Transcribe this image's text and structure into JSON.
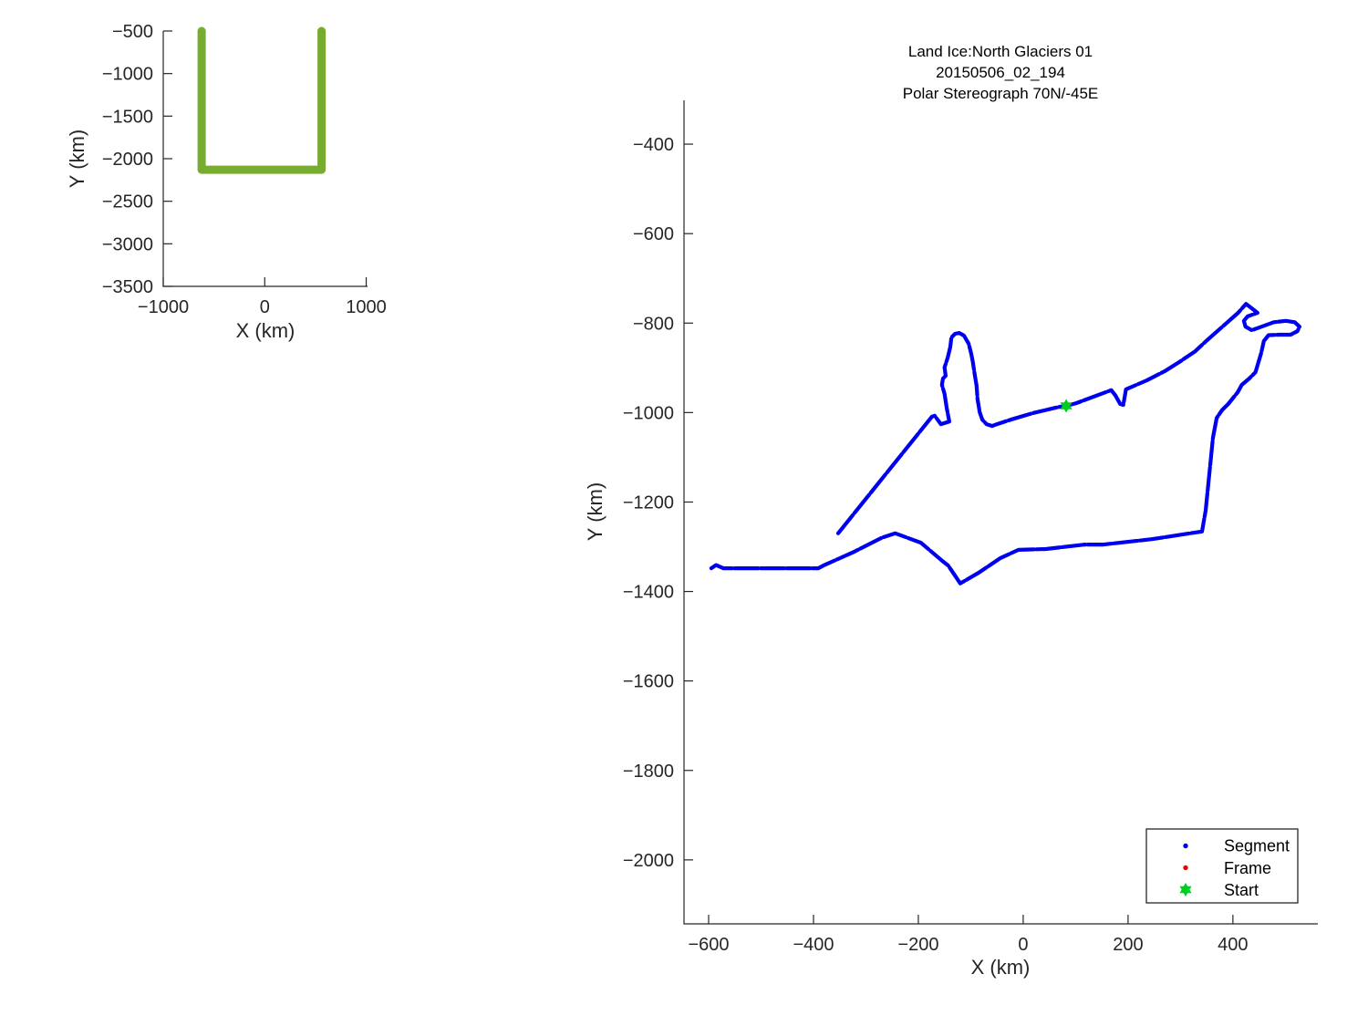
{
  "figure": {
    "background": "#ffffff",
    "axis_color": "#262626"
  },
  "chart_data": [
    {
      "id": "overview-plot",
      "type": "line",
      "title": "",
      "xlabel": "X (km)",
      "ylabel": "Y (km)",
      "xlim": [
        -1000,
        1013
      ],
      "ylim": [
        -500,
        -3500
      ],
      "grid": false,
      "xticks": {
        "values": [
          -1000,
          0,
          1000
        ],
        "labels": [
          "−1000",
          "0",
          "1000"
        ]
      },
      "yticks": {
        "values": [
          -500,
          -1000,
          -1500,
          -2000,
          -2500,
          -3000,
          -3500
        ],
        "labels": [
          "−500",
          "−1000",
          "−1500",
          "−2000",
          "−2500",
          "−3000",
          "−3500"
        ]
      },
      "series": [
        {
          "name": "coverage-outline",
          "color": "#77AC30",
          "line_width": 9,
          "x": [
            -622,
            -622,
            560,
            560
          ],
          "y": [
            -500,
            -2130,
            -2130,
            -500
          ]
        }
      ]
    },
    {
      "id": "main-track-plot",
      "type": "line",
      "title_lines": [
        "Land Ice:North Glaciers 01",
        "20150506_02_194",
        "Polar Stereograph 70N/-45E"
      ],
      "xlabel": "X (km)",
      "ylabel": "Y (km)",
      "xlim": [
        -647,
        562
      ],
      "ylim": [
        -302,
        -2143
      ],
      "grid": false,
      "xticks": {
        "values": [
          -600,
          -400,
          -200,
          0,
          200,
          400
        ],
        "labels": [
          "−600",
          "−400",
          "−200",
          "0",
          "200",
          "400"
        ]
      },
      "yticks": {
        "values": [
          -400,
          -600,
          -800,
          -1000,
          -1200,
          -1400,
          -1600,
          -1800,
          -2000
        ],
        "labels": [
          "−400",
          "−600",
          "−800",
          "−1000",
          "−1200",
          "−1400",
          "−1600",
          "−1800",
          "−2000"
        ]
      },
      "legend": {
        "position": "lower right",
        "entries": [
          {
            "label": "Segment",
            "marker": "dot",
            "color": "#0000F0"
          },
          {
            "label": "Frame",
            "marker": "dot",
            "color": "#EE0000"
          },
          {
            "label": "Start",
            "marker": "hexagram",
            "color": "#00CC22"
          }
        ]
      },
      "series": [
        {
          "name": "Segment",
          "color": "#0000F0",
          "line_width": 4.2,
          "x": [
            -353,
            -174,
            -169,
            -157,
            -141,
            -146,
            -150,
            -155,
            -153,
            -148,
            -150,
            -144,
            -139,
            -137,
            -130,
            -122,
            -113,
            -104,
            -99,
            -96,
            -92,
            -89,
            -87,
            -85,
            -83,
            -78,
            -70,
            -59,
            -50,
            -24,
            19,
            66,
            82,
            101,
            168,
            176,
            185,
            191,
            196,
            236,
            271,
            298,
            328,
            351,
            380,
            410,
            425,
            447,
            428,
            421,
            424,
            436,
            450,
            478,
            501,
            518,
            527,
            523,
            510,
            489,
            468,
            459,
            454,
            443,
            431,
            417,
            409,
            391,
            379,
            369,
            362,
            348,
            341,
            245,
            153,
            118,
            43,
            -9,
            -43,
            -85,
            -120,
            -143,
            -155,
            -195,
            -244,
            -270,
            -322,
            -381,
            -391,
            -572,
            -586,
            -595
          ],
          "y": [
            -1270,
            -1009,
            -1007,
            -1026,
            -1020,
            -989,
            -958,
            -938,
            -924,
            -918,
            -899,
            -877,
            -853,
            -832,
            -824,
            -822,
            -828,
            -846,
            -869,
            -887,
            -918,
            -940,
            -971,
            -985,
            -999,
            -1016,
            -1026,
            -1030,
            -1026,
            -1016,
            -1001,
            -988,
            -985,
            -979,
            -950,
            -962,
            -981,
            -983,
            -948,
            -928,
            -907,
            -887,
            -863,
            -838,
            -808,
            -777,
            -757,
            -777,
            -785,
            -795,
            -808,
            -816,
            -810,
            -798,
            -795,
            -798,
            -808,
            -818,
            -826,
            -826,
            -827,
            -840,
            -867,
            -910,
            -924,
            -938,
            -955,
            -981,
            -995,
            -1012,
            -1056,
            -1219,
            -1266,
            -1283,
            -1295,
            -1295,
            -1305,
            -1307,
            -1325,
            -1358,
            -1382,
            -1342,
            -1331,
            -1291,
            -1270,
            -1280,
            -1311,
            -1342,
            -1348,
            -1348,
            -1341,
            -1348
          ]
        },
        {
          "name": "Start",
          "marker": "hexagram",
          "marker_size": 7.5,
          "color": "#00CC22",
          "x": [
            82
          ],
          "y": [
            -985
          ]
        }
      ]
    }
  ]
}
